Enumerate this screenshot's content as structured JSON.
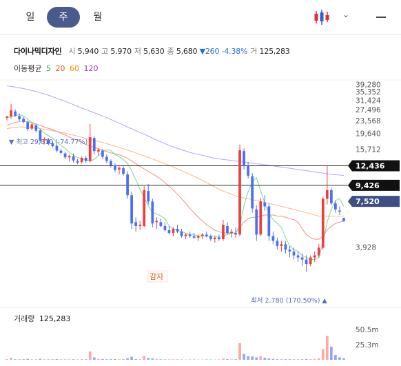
{
  "tabs": [
    {
      "label": "일",
      "active": false
    },
    {
      "label": "주",
      "active": true
    },
    {
      "label": "월",
      "active": false
    }
  ],
  "toolbar": {
    "chart_type_icon": "candlestick-icon",
    "dropdown_icon": "chevron-down-icon",
    "menu_icon": "minus-icon"
  },
  "stock": {
    "name": "다이나믹디자인",
    "open_label": "시",
    "open": "5,940",
    "high_label": "고",
    "high": "5,970",
    "low_label": "저",
    "low": "5,630",
    "close_label": "종",
    "close": "5,680",
    "change": "▼260",
    "change_pct": "-4.38%",
    "volume_label": "거",
    "volume": "125,283"
  },
  "moving_average": {
    "label": "이동평균",
    "periods": [
      {
        "period": "5",
        "color": "#2f9e44"
      },
      {
        "period": "20",
        "color": "#e8590c"
      },
      {
        "period": "60",
        "color": "#f08c00"
      },
      {
        "period": "120",
        "color": "#9c36b5"
      }
    ]
  },
  "chart_data": {
    "type": "candlestick",
    "y_ticks": [
      "39,280",
      "35,352",
      "31,424",
      "27,496",
      "23,568",
      "19,640",
      "15,712",
      "12,436",
      "9,426",
      "7,520",
      "3,928"
    ],
    "y_range": [
      2000,
      41000
    ],
    "max_annotation": "▼ 최고 29,810 (-74.77%)",
    "min_annotation": "최저 2,780 (170.50%) ▲",
    "price_lines": [
      {
        "label": "12,436",
        "value": 12436,
        "badge_color": "#111111"
      },
      {
        "label": "9,426",
        "value": 9426,
        "badge_color": "#111111"
      },
      {
        "label": "7,520",
        "value": 7520,
        "badge_color": "#3e4f86"
      }
    ],
    "overlay_text": "감자",
    "candles": [
      [
        24500,
        25200,
        23600,
        24900
      ],
      [
        25000,
        29810,
        24100,
        27200
      ],
      [
        26800,
        27600,
        24800,
        25200
      ],
      [
        25100,
        26000,
        23400,
        24000
      ],
      [
        24200,
        24800,
        22600,
        23100
      ],
      [
        23000,
        23400,
        20300,
        20900
      ],
      [
        21000,
        22700,
        20600,
        22300
      ],
      [
        22000,
        22400,
        19900,
        20400
      ],
      [
        20500,
        20800,
        17200,
        17700
      ],
      [
        17800,
        18600,
        16800,
        18100
      ],
      [
        18000,
        18400,
        16600,
        17000
      ],
      [
        17100,
        17600,
        16100,
        16400
      ],
      [
        16500,
        16900,
        15000,
        15400
      ],
      [
        15400,
        15700,
        14500,
        14900
      ],
      [
        14800,
        15200,
        13600,
        14000
      ],
      [
        14000,
        14600,
        13200,
        14300
      ],
      [
        14200,
        14800,
        13000,
        13400
      ],
      [
        13300,
        13700,
        12700,
        13000
      ],
      [
        13100,
        14200,
        12800,
        13900
      ],
      [
        13900,
        14300,
        12900,
        13300
      ],
      [
        13300,
        22400,
        13000,
        18600
      ],
      [
        18400,
        18900,
        14600,
        15300
      ],
      [
        15200,
        15900,
        14300,
        15600
      ],
      [
        15400,
        15700,
        13700,
        14100
      ],
      [
        14100,
        14600,
        12900,
        13300
      ],
      [
        13300,
        13600,
        12100,
        12500
      ],
      [
        12500,
        12900,
        11300,
        11700
      ],
      [
        11800,
        12300,
        11000,
        12100
      ],
      [
        12000,
        12400,
        10800,
        11100
      ],
      [
        11000,
        11500,
        7800,
        8200
      ],
      [
        8200,
        8600,
        5100,
        5500
      ],
      [
        5600,
        6000,
        4900,
        5300
      ],
      [
        5300,
        5700,
        5000,
        5400
      ],
      [
        5300,
        9300,
        5200,
        8800
      ],
      [
        8700,
        9600,
        7200,
        7500
      ],
      [
        7500,
        7800,
        5200,
        5500
      ],
      [
        5600,
        6000,
        5100,
        5700
      ],
      [
        5600,
        5900,
        5200,
        5300
      ],
      [
        5300,
        5600,
        4900,
        5000
      ],
      [
        5000,
        5300,
        4700,
        4800
      ],
      [
        4800,
        5200,
        4600,
        5100
      ],
      [
        5100,
        5400,
        4800,
        4900
      ],
      [
        4900,
        5100,
        4500,
        4600
      ],
      [
        4600,
        4800,
        4400,
        4700
      ],
      [
        4700,
        4900,
        4500,
        4600
      ],
      [
        4600,
        4800,
        4400,
        4500
      ],
      [
        4500,
        4700,
        4300,
        4600
      ],
      [
        4600,
        4800,
        4400,
        4700
      ],
      [
        4700,
        4900,
        4500,
        4600
      ],
      [
        4600,
        4700,
        4300,
        4400
      ],
      [
        4400,
        4600,
        4200,
        4500
      ],
      [
        4500,
        4700,
        4300,
        4400
      ],
      [
        4400,
        5800,
        4300,
        5400
      ],
      [
        5300,
        5600,
        4700,
        4800
      ],
      [
        4800,
        5100,
        4500,
        4900
      ],
      [
        4800,
        5200,
        4500,
        4700
      ],
      [
        4700,
        16800,
        4600,
        15500
      ],
      [
        15300,
        15900,
        11800,
        12400
      ],
      [
        12400,
        13100,
        10400,
        10800
      ],
      [
        10700,
        11200,
        6400,
        6800
      ],
      [
        6700,
        7100,
        4300,
        4700
      ],
      [
        4700,
        7900,
        4600,
        7500
      ],
      [
        7400,
        8200,
        6600,
        7000
      ],
      [
        7000,
        7300,
        4300,
        4600
      ],
      [
        4600,
        4900,
        4100,
        4300
      ],
      [
        4300,
        4500,
        3800,
        4000
      ],
      [
        4000,
        4300,
        3700,
        4100
      ],
      [
        4100,
        4300,
        3600,
        3800
      ],
      [
        3800,
        4000,
        3400,
        3700
      ],
      [
        3700,
        3900,
        3300,
        3500
      ],
      [
        3500,
        3700,
        3200,
        3400
      ],
      [
        3400,
        3600,
        3000,
        3300
      ],
      [
        3300,
        3500,
        2780,
        3100
      ],
      [
        3100,
        3500,
        3000,
        3400
      ],
      [
        3400,
        3700,
        3200,
        3500
      ],
      [
        3500,
        4100,
        3400,
        3900
      ],
      [
        3900,
        8000,
        3800,
        7800
      ],
      [
        7800,
        12436,
        7200,
        8800
      ],
      [
        8800,
        9100,
        7100,
        7300
      ],
      [
        7300,
        7600,
        6400,
        6700
      ],
      [
        6600,
        7000,
        6200,
        6500
      ],
      [
        5940,
        5970,
        5630,
        5680
      ]
    ],
    "ma5": [
      24500,
      24900,
      25300,
      25600,
      25100,
      24000,
      22900,
      21900,
      20900,
      19700,
      19000,
      18300,
      17300,
      16600,
      15900,
      15000,
      14400,
      14000,
      13700,
      13500,
      13300,
      13600,
      14400,
      15100,
      15600,
      15400,
      14600,
      14100,
      13600,
      12800,
      11600,
      10200,
      8900,
      7900,
      7100,
      6400,
      6300,
      6100,
      5900,
      5300,
      5100,
      5000,
      4900,
      4800,
      4700,
      4700,
      4600,
      4600,
      4600,
      4600,
      4600,
      4500,
      4600,
      4700,
      4800,
      4800,
      5300,
      7100,
      8600,
      9900,
      10500,
      8700,
      7300,
      6300,
      5800,
      5500,
      5200,
      4500,
      4000,
      3800,
      3700,
      3500,
      3400,
      3300,
      3300,
      3400,
      4200,
      5600,
      6700,
      7600,
      7800,
      7000
    ],
    "ma20": [
      22000,
      22500,
      22900,
      23200,
      23300,
      23200,
      22900,
      22500,
      22000,
      21500,
      21100,
      20700,
      20200,
      19700,
      19200,
      18700,
      18200,
      17800,
      17300,
      16800,
      16400,
      16100,
      15800,
      15500,
      15200,
      14900,
      14700,
      14500,
      14200,
      13800,
      13300,
      12800,
      12300,
      11900,
      11500,
      11100,
      10700,
      10300,
      9800,
      9300,
      8800,
      8300,
      7800,
      7300,
      6800,
      6400,
      6000,
      5700,
      5400,
      5200,
      5000,
      4900,
      4800,
      4800,
      4800,
      4800,
      5200,
      5600,
      5900,
      6000,
      6000,
      6100,
      6200,
      6200,
      6200,
      6100,
      6100,
      6000,
      5900,
      5800,
      5600,
      5100,
      4700,
      4500,
      4400,
      4400,
      4600,
      5000,
      5300,
      5500,
      5600,
      5700
    ],
    "ma60": [
      21000,
      21200,
      21400,
      21500,
      21500,
      21400,
      21300,
      21200,
      21000,
      20800,
      20600,
      20400,
      20200,
      19900,
      19700,
      19400,
      19200,
      18900,
      18600,
      18300,
      18000,
      17800,
      17500,
      17300,
      17000,
      16700,
      16400,
      16100,
      15800,
      15500,
      15200,
      14900,
      14600,
      14300,
      14000,
      13700,
      13400,
      13100,
      12800,
      12500,
      12200,
      11900,
      11600,
      11300,
      11000,
      10700,
      10400,
      10100,
      9800,
      9500,
      9200,
      8900,
      8700,
      8500,
      8300,
      8100,
      8000,
      7900,
      7800,
      7700,
      7600,
      7500,
      7400,
      7300,
      7200,
      7100,
      7000,
      6900,
      6800,
      6700,
      6600,
      6500,
      6400,
      6300,
      6200,
      6100,
      6100,
      6100,
      6100,
      6100,
      6100,
      6100
    ],
    "ma120": [
      38500,
      38200,
      37800,
      37400,
      37000,
      36500,
      36000,
      35500,
      34900,
      34300,
      33700,
      33000,
      32300,
      31600,
      30900,
      30200,
      29500,
      28800,
      28100,
      27500,
      26900,
      26300,
      25700,
      25100,
      24500,
      23900,
      23300,
      22700,
      22100,
      21500,
      21000,
      20400,
      19900,
      19400,
      18900,
      18400,
      17900,
      17400,
      17000,
      16600,
      16200,
      15900,
      15600,
      15300,
      15000,
      14800,
      14600,
      14400,
      14200,
      14000,
      13800,
      13700,
      13600,
      13500,
      13400,
      13300,
      13200,
      13100,
      13000,
      12900,
      12800,
      12700,
      12600,
      12500,
      12400,
      12300,
      12200,
      12100,
      12000,
      11900,
      11800,
      11700,
      11600,
      11500,
      11400,
      11300,
      11200,
      11100,
      11000,
      10950,
      10900,
      10850
    ],
    "volume": {
      "label": "거래량",
      "value": "125,283",
      "ticks": [
        "50.5m",
        "25.3m"
      ],
      "max": 60,
      "series": [
        1.2,
        3.5,
        1.0,
        0.8,
        0.9,
        1.5,
        0.8,
        0.7,
        1.8,
        0.9,
        0.7,
        0.8,
        1.1,
        0.6,
        0.7,
        0.8,
        0.9,
        0.5,
        1.2,
        0.8,
        14.0,
        4.0,
        1.5,
        1.3,
        0.9,
        1.0,
        1.2,
        0.8,
        0.9,
        2.5,
        5.0,
        1.2,
        1.0,
        6.5,
        3.0,
        2.2,
        1.1,
        0.8,
        0.7,
        0.6,
        0.9,
        0.7,
        0.6,
        0.5,
        0.5,
        0.6,
        0.5,
        0.5,
        0.6,
        0.5,
        0.4,
        0.5,
        2.0,
        1.1,
        0.8,
        0.9,
        28.0,
        10.0,
        6.0,
        5.5,
        4.0,
        6.0,
        3.2,
        2.1,
        1.5,
        1.0,
        1.2,
        1.0,
        0.9,
        0.8,
        0.7,
        0.9,
        1.2,
        1.1,
        1.4,
        2.5,
        18.0,
        40.0,
        22.0,
        8.0,
        4.0,
        2.5
      ]
    }
  }
}
